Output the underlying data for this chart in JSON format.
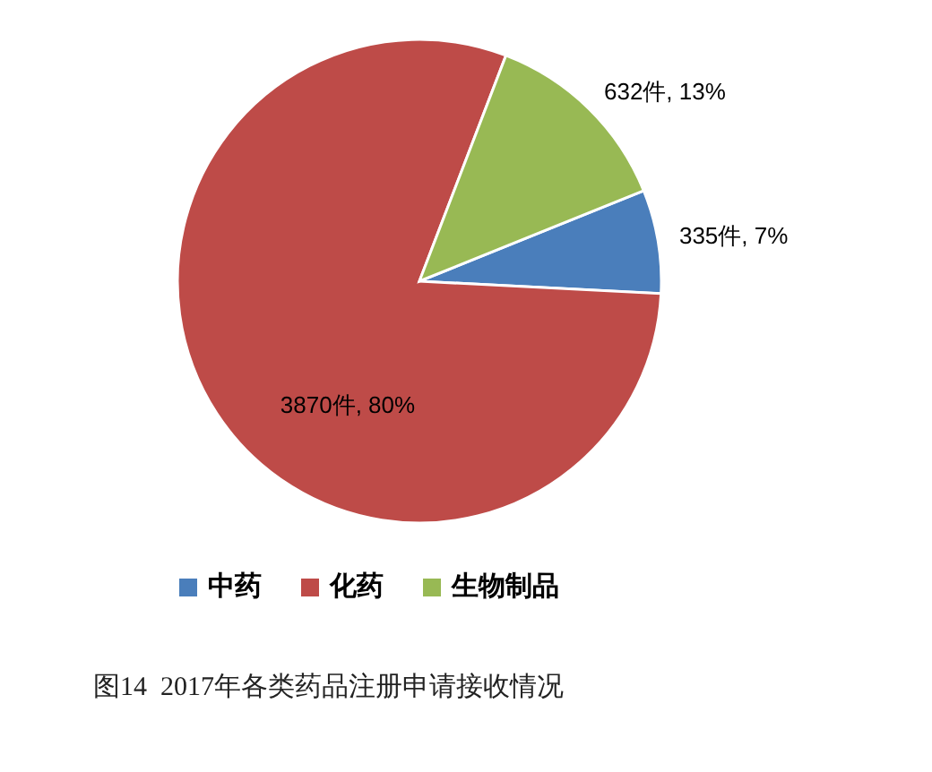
{
  "chart_data": {
    "type": "pie",
    "categories": [
      "中药",
      "化药",
      "生物制品"
    ],
    "values": [
      335,
      3870,
      632
    ],
    "colors": [
      "#4a7ebb",
      "#be4b48",
      "#98b954"
    ],
    "value_labels": [
      "335件, 7%",
      "3870件, 80%",
      "632件, 13%"
    ],
    "legend": "bottom",
    "annotations": [
      "图14  2017年各类药品注册申请接收情况"
    ]
  }
}
